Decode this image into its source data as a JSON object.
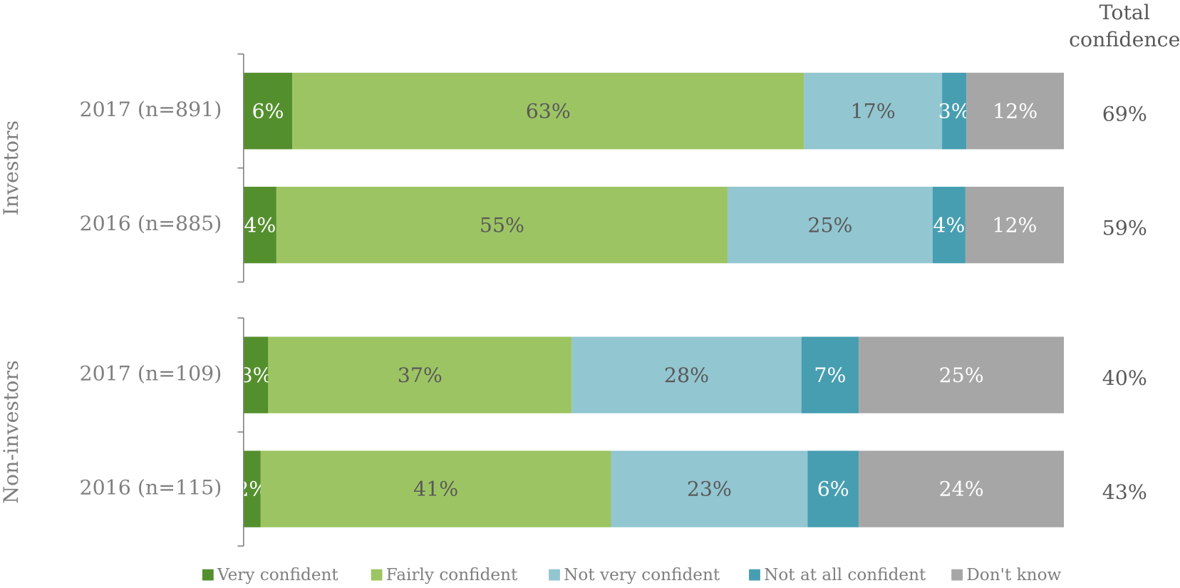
{
  "chart_data": {
    "type": "stacked_barh",
    "stacking": "percent",
    "categories": [
      "2017 (n=891)",
      "2016 (n=885)",
      "2017 (n=109)",
      "2016 (n=115)"
    ],
    "groups": [
      {
        "name": "Investors",
        "categories": [
          0,
          1
        ]
      },
      {
        "name": "Non-investors",
        "categories": [
          2,
          3
        ]
      }
    ],
    "series": [
      {
        "name": "Very confident",
        "color": "#548f2e",
        "label_color": "#ffffff",
        "values": [
          6,
          4,
          3,
          2
        ],
        "value_labels": [
          "6%",
          "4%",
          "3%",
          "2%"
        ]
      },
      {
        "name": "Fairly confident",
        "color": "#9dc463",
        "label_color": "#595959",
        "values": [
          63,
          55,
          37,
          41
        ],
        "value_labels": [
          "63%",
          "55%",
          "37%",
          "41%"
        ]
      },
      {
        "name": "Not very confident",
        "color": "#92c6d1",
        "label_color": "#595959",
        "values": [
          17,
          25,
          28,
          23
        ],
        "value_labels": [
          "17%",
          "25%",
          "28%",
          "23%"
        ]
      },
      {
        "name": "Not at all confident",
        "color": "#479eb1",
        "label_color": "#ffffff",
        "values": [
          3,
          4,
          7,
          6
        ],
        "value_labels": [
          "3%",
          "4%",
          "7%",
          "6%"
        ]
      },
      {
        "name": "Don't know",
        "color": "#a6a6a6",
        "label_color": "#ffffff",
        "values": [
          12,
          12,
          25,
          24
        ],
        "value_labels": [
          "12%",
          "12%",
          "25%",
          "24%"
        ]
      }
    ],
    "total_title": "Total confidence",
    "totals": [
      69,
      59,
      40,
      43
    ],
    "total_labels": [
      "69%",
      "59%",
      "40%",
      "43%"
    ],
    "legend": "bottom"
  }
}
